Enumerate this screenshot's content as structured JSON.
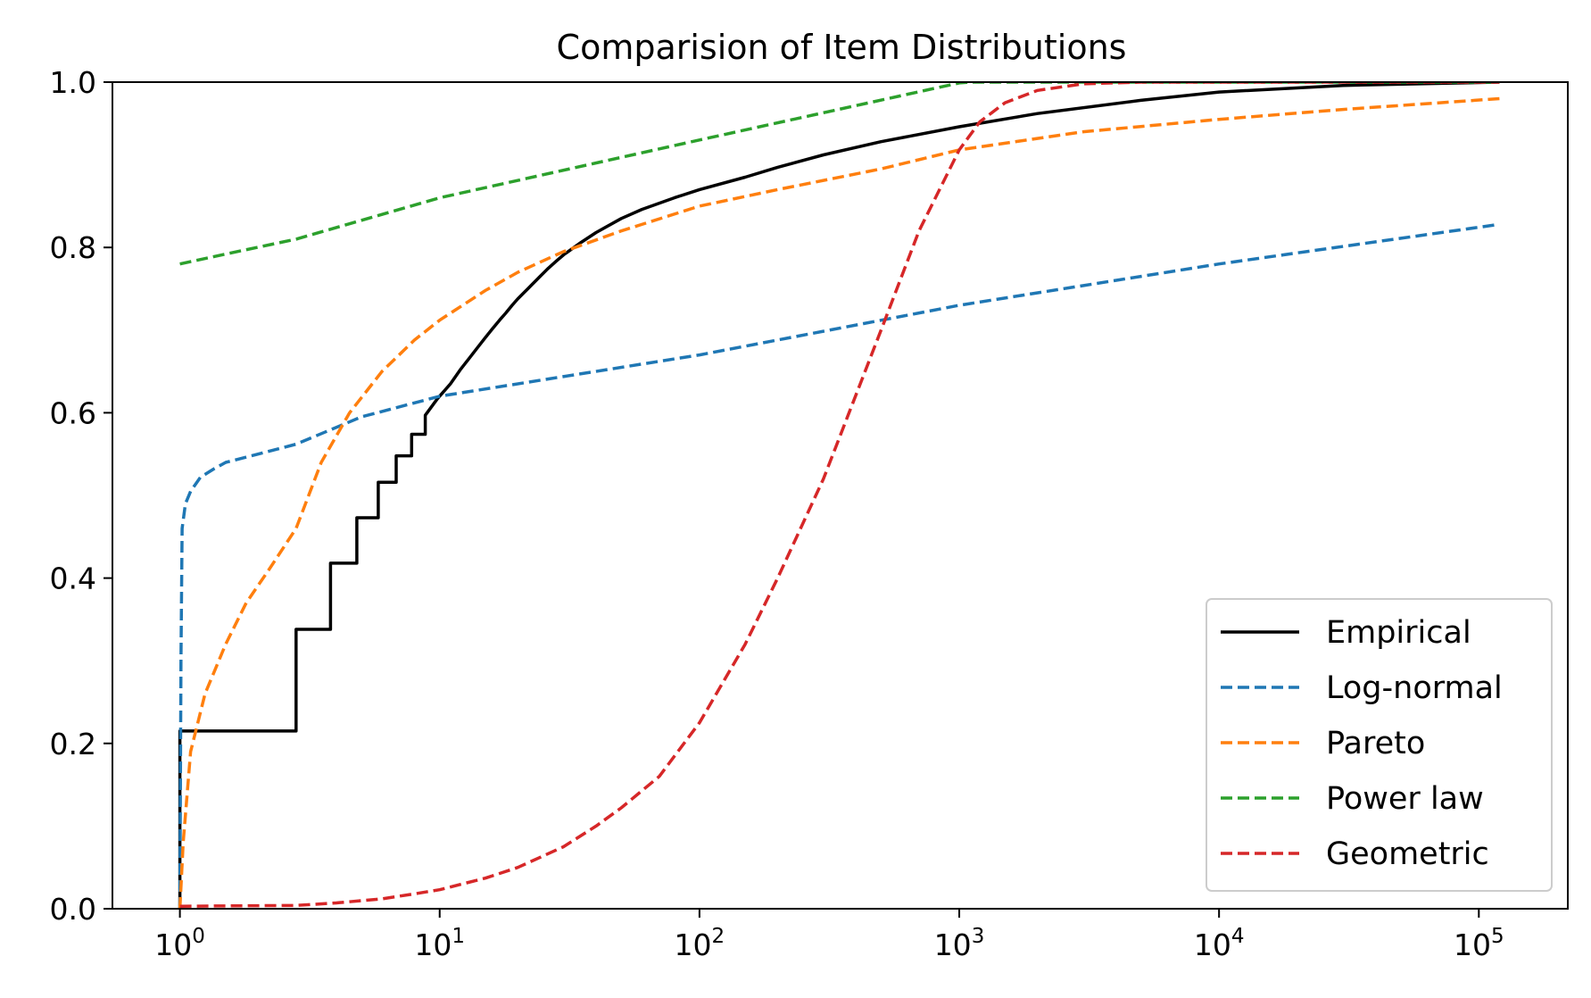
{
  "chart_data": {
    "type": "line",
    "title": "Comparision of Item Distributions",
    "xlabel": "",
    "ylabel": "",
    "xscale": "log",
    "xlim": [
      0.55,
      220000
    ],
    "ylim": [
      0,
      1
    ],
    "grid": false,
    "legend_position": "lower-right",
    "xticks": [
      {
        "value": 1,
        "base": "10",
        "exp": "0"
      },
      {
        "value": 10,
        "base": "10",
        "exp": "1"
      },
      {
        "value": 100,
        "base": "10",
        "exp": "2"
      },
      {
        "value": 1000,
        "base": "10",
        "exp": "3"
      },
      {
        "value": 10000,
        "base": "10",
        "exp": "4"
      },
      {
        "value": 100000,
        "base": "10",
        "exp": "5"
      }
    ],
    "yticks": [
      {
        "value": 0,
        "label": "0.0"
      },
      {
        "value": 0.2,
        "label": "0.2"
      },
      {
        "value": 0.4,
        "label": "0.4"
      },
      {
        "value": 0.6,
        "label": "0.6"
      },
      {
        "value": 0.8,
        "label": "0.8"
      },
      {
        "value": 1,
        "label": "1.0"
      }
    ],
    "series": [
      {
        "name": "Empirical",
        "color": "#000000",
        "style": "solid",
        "step": true,
        "x": [
          1,
          1,
          2.8,
          2.8,
          3.8,
          3.8,
          4.8,
          4.8,
          5.8,
          5.8,
          6.8,
          6.8,
          7.8,
          7.8,
          8.8,
          8.8,
          9.8,
          11,
          12,
          13,
          14,
          15,
          16,
          17,
          18,
          19,
          20,
          22,
          24,
          26,
          28,
          30,
          35,
          40,
          50,
          60,
          80,
          100,
          150,
          200,
          300,
          500,
          1000,
          2000,
          5000,
          10000,
          30000,
          120000
        ],
        "y": [
          0,
          0.215,
          0.215,
          0.338,
          0.338,
          0.418,
          0.418,
          0.473,
          0.473,
          0.516,
          0.516,
          0.548,
          0.548,
          0.574,
          0.574,
          0.597,
          0.617,
          0.635,
          0.652,
          0.666,
          0.679,
          0.691,
          0.702,
          0.712,
          0.721,
          0.73,
          0.738,
          0.751,
          0.763,
          0.774,
          0.783,
          0.791,
          0.806,
          0.818,
          0.835,
          0.846,
          0.86,
          0.87,
          0.885,
          0.897,
          0.912,
          0.928,
          0.946,
          0.962,
          0.978,
          0.988,
          0.996,
          1.0
        ]
      },
      {
        "name": "Log-normal",
        "color": "#1f77b4",
        "style": "dashed",
        "x": [
          1,
          1.01,
          1.02,
          1.05,
          1.1,
          1.2,
          1.35,
          1.5,
          2,
          2.8,
          5,
          10,
          100,
          1000,
          10000,
          120000
        ],
        "y": [
          0,
          0.3,
          0.46,
          0.49,
          0.505,
          0.522,
          0.532,
          0.54,
          0.55,
          0.562,
          0.595,
          0.62,
          0.67,
          0.73,
          0.78,
          0.828
        ]
      },
      {
        "name": "Pareto",
        "color": "#ff7f0e",
        "style": "dashed",
        "x": [
          1,
          1.03,
          1.1,
          1.25,
          1.5,
          1.8,
          2.2,
          2.8,
          3.5,
          4.5,
          6,
          8,
          10,
          15,
          20,
          30,
          50,
          100,
          200,
          500,
          1000,
          3000,
          10000,
          30000,
          120000
        ],
        "y": [
          0,
          0.08,
          0.19,
          0.26,
          0.32,
          0.37,
          0.41,
          0.46,
          0.54,
          0.6,
          0.65,
          0.688,
          0.712,
          0.748,
          0.77,
          0.795,
          0.82,
          0.85,
          0.87,
          0.895,
          0.918,
          0.94,
          0.955,
          0.967,
          0.98
        ]
      },
      {
        "name": "Power law",
        "color": "#2ca02c",
        "style": "dashed",
        "x": [
          1,
          1.5,
          2.8,
          10,
          100,
          1000,
          1100,
          120000
        ],
        "y": [
          0.78,
          0.792,
          0.81,
          0.86,
          0.93,
          0.999,
          1.0,
          1.0
        ]
      },
      {
        "name": "Geometric",
        "color": "#d62728",
        "style": "dashed",
        "x": [
          1,
          2.8,
          4,
          6,
          8,
          10,
          15,
          20,
          30,
          40,
          50,
          70,
          100,
          150,
          200,
          300,
          500,
          700,
          1000,
          1200,
          1500,
          2000,
          3000,
          5000,
          120000
        ],
        "y": [
          0.003,
          0.004,
          0.007,
          0.012,
          0.018,
          0.023,
          0.037,
          0.05,
          0.075,
          0.1,
          0.122,
          0.16,
          0.225,
          0.32,
          0.4,
          0.52,
          0.7,
          0.82,
          0.918,
          0.952,
          0.975,
          0.99,
          0.998,
          1.0,
          1.0
        ]
      }
    ]
  }
}
